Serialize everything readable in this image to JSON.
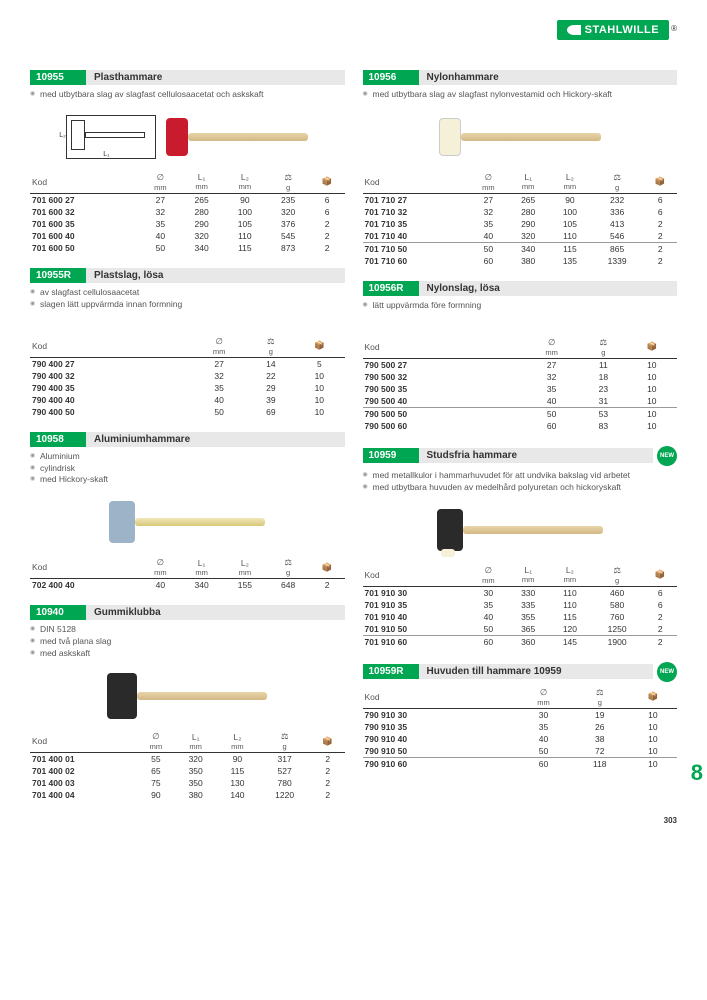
{
  "brand": "STAHLWILLE",
  "page_number": "303",
  "side_tab": "8",
  "new_label": "NEW",
  "col_headers": {
    "kod": "Kod",
    "diam": "∅",
    "mm": "mm",
    "l1": "L₁",
    "l2": "L₂",
    "weight": "⚖",
    "g": "g",
    "pack": "📦"
  },
  "sections": {
    "s10955": {
      "code": "10955",
      "title": "Plasthammare",
      "desc": [
        "med utbytbara slag av slagfast cellulosaacetat och askskaft"
      ],
      "head_color": "#c91b2e",
      "handle_color": "linear-gradient(#e8d4a8,#d4b886)",
      "rows": [
        [
          "701 600 27",
          "27",
          "265",
          "90",
          "235",
          "6"
        ],
        [
          "701 600 32",
          "32",
          "280",
          "100",
          "320",
          "6"
        ],
        [
          "701 600 35",
          "35",
          "290",
          "105",
          "376",
          "2"
        ],
        [
          "701 600 40",
          "40",
          "320",
          "110",
          "545",
          "2"
        ],
        [
          "701 600 50",
          "50",
          "340",
          "115",
          "873",
          "2"
        ]
      ]
    },
    "s10955R": {
      "code": "10955R",
      "title": "Plastslag, lösa",
      "desc": [
        "av slagfast cellulosaacetat",
        "slagen lätt uppvärmda innan formning"
      ],
      "rows": [
        [
          "790 400 27",
          "27",
          "14",
          "5"
        ],
        [
          "790 400 32",
          "32",
          "22",
          "10"
        ],
        [
          "790 400 35",
          "35",
          "29",
          "10"
        ],
        [
          "790 400 40",
          "40",
          "39",
          "10"
        ],
        [
          "790 400 50",
          "50",
          "69",
          "10"
        ]
      ]
    },
    "s10958": {
      "code": "10958",
      "title": "Aluminiumhammare",
      "desc": [
        "Aluminium",
        "cylindrisk",
        "med Hickory-skaft"
      ],
      "head_color": "#9db4c8",
      "handle_color": "linear-gradient(#f0e6b8,#d8c87a)",
      "rows": [
        [
          "702 400 40",
          "40",
          "340",
          "155",
          "648",
          "2"
        ]
      ]
    },
    "s10940": {
      "code": "10940",
      "title": "Gummiklubba",
      "desc": [
        "DIN 5128",
        "med två plana slag",
        "med askskaft"
      ],
      "head_color": "#2a2a2a",
      "handle_color": "linear-gradient(#e8d4a8,#d4b886)",
      "rows": [
        [
          "701 400 01",
          "55",
          "320",
          "90",
          "317",
          "2"
        ],
        [
          "701 400 02",
          "65",
          "350",
          "115",
          "527",
          "2"
        ],
        [
          "701 400 03",
          "75",
          "350",
          "130",
          "780",
          "2"
        ],
        [
          "701 400 04",
          "90",
          "380",
          "140",
          "1220",
          "2"
        ]
      ]
    },
    "s10956": {
      "code": "10956",
      "title": "Nylonhammare",
      "desc": [
        "med utbytbara slag av slagfast nylonvestamid och Hickory-skaft"
      ],
      "head_color": "#f5f0d8",
      "handle_color": "linear-gradient(#e8d4a8,#d4b886)",
      "rows": [
        [
          "701 710 27",
          "27",
          "265",
          "90",
          "232",
          "6"
        ],
        [
          "701 710 32",
          "32",
          "280",
          "100",
          "336",
          "6"
        ],
        [
          "701 710 35",
          "35",
          "290",
          "105",
          "413",
          "2"
        ],
        [
          "701 710 40",
          "40",
          "320",
          "110",
          "546",
          "2"
        ],
        [
          "701 710 50",
          "50",
          "340",
          "115",
          "865",
          "2"
        ],
        [
          "701 710 60",
          "60",
          "380",
          "135",
          "1339",
          "2"
        ]
      ]
    },
    "s10956R": {
      "code": "10956R",
      "title": "Nylonslag, lösa",
      "desc": [
        "lätt uppvärmda före formning"
      ],
      "rows": [
        [
          "790 500 27",
          "27",
          "11",
          "10"
        ],
        [
          "790 500 32",
          "32",
          "18",
          "10"
        ],
        [
          "790 500 35",
          "35",
          "23",
          "10"
        ],
        [
          "790 500 40",
          "40",
          "31",
          "10"
        ],
        [
          "790 500 50",
          "50",
          "53",
          "10"
        ],
        [
          "790 500 60",
          "60",
          "83",
          "10"
        ]
      ]
    },
    "s10959": {
      "code": "10959",
      "title": "Studsfria hammare",
      "new": true,
      "desc": [
        "med metallkulor i hammarhuvudet för att undvika bakslag vid arbetet",
        "med utbytbara huvuden av medelhård polyuretan och hickoryskaft"
      ],
      "head_color": "#2a2a2a",
      "handle_color": "linear-gradient(#e8d4a8,#d4b886)",
      "rows": [
        [
          "701 910 30",
          "30",
          "330",
          "110",
          "460",
          "6"
        ],
        [
          "701 910 35",
          "35",
          "335",
          "110",
          "580",
          "6"
        ],
        [
          "701 910 40",
          "40",
          "355",
          "115",
          "760",
          "2"
        ],
        [
          "701 910 50",
          "50",
          "365",
          "120",
          "1250",
          "2"
        ],
        [
          "701 910 60",
          "60",
          "360",
          "145",
          "1900",
          "2"
        ]
      ]
    },
    "s10959R": {
      "code": "10959R",
      "title": "Huvuden till hammare 10959",
      "new": true,
      "rows": [
        [
          "790 910 30",
          "30",
          "19",
          "10"
        ],
        [
          "790 910 35",
          "35",
          "26",
          "10"
        ],
        [
          "790 910 40",
          "40",
          "38",
          "10"
        ],
        [
          "790 910 50",
          "50",
          "72",
          "10"
        ],
        [
          "790 910 60",
          "60",
          "118",
          "10"
        ]
      ]
    }
  }
}
